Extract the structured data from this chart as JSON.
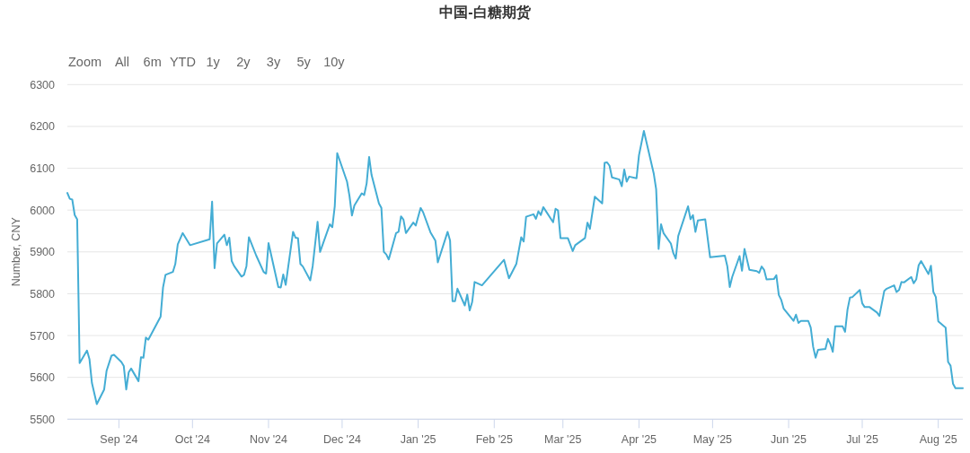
{
  "chart_data": {
    "type": "line",
    "title": "中国-白糖期货",
    "ylabel": "Number, CNY",
    "annotations": [
      "Zoom",
      "All",
      "6m",
      "YTD",
      "1y",
      "2y",
      "3y",
      "5y",
      "10y"
    ],
    "xlim": [
      "2024-08-11",
      "2025-08-11"
    ],
    "xticks": [
      {
        "value": "2024-09-01",
        "label": "Sep '24"
      },
      {
        "value": "2024-10-01",
        "label": "Oct '24"
      },
      {
        "value": "2024-11-01",
        "label": "Nov '24"
      },
      {
        "value": "2024-12-01",
        "label": "Dec '24"
      },
      {
        "value": "2025-01-01",
        "label": "Jan '25"
      },
      {
        "value": "2025-02-01",
        "label": "Feb '25"
      },
      {
        "value": "2025-03-01",
        "label": "Mar '25"
      },
      {
        "value": "2025-04-01",
        "label": "Apr '25"
      },
      {
        "value": "2025-05-01",
        "label": "May '25"
      },
      {
        "value": "2025-06-01",
        "label": "Jun '25"
      },
      {
        "value": "2025-07-01",
        "label": "Jul '25"
      },
      {
        "value": "2025-08-01",
        "label": "Aug '25"
      }
    ],
    "ylim": [
      5500,
      6300
    ],
    "yticks": [
      5500,
      5600,
      5700,
      5800,
      5900,
      6000,
      6100,
      6200,
      6300
    ],
    "grid": "y",
    "line_style": "solid",
    "x": [
      "2024-08-11",
      "2024-08-12",
      "2024-08-13",
      "2024-08-14",
      "2024-08-15",
      "2024-08-16",
      "2024-08-19",
      "2024-08-20",
      "2024-08-21",
      "2024-08-23",
      "2024-08-26",
      "2024-08-27",
      "2024-08-29",
      "2024-08-30",
      "2024-09-02",
      "2024-09-03",
      "2024-09-04",
      "2024-09-05",
      "2024-09-06",
      "2024-09-09",
      "2024-09-10",
      "2024-09-11",
      "2024-09-12",
      "2024-09-13",
      "2024-09-18",
      "2024-09-19",
      "2024-09-20",
      "2024-09-23",
      "2024-09-24",
      "2024-09-25",
      "2024-09-27",
      "2024-09-30",
      "2024-10-08",
      "2024-10-09",
      "2024-10-10",
      "2024-10-11",
      "2024-10-14",
      "2024-10-15",
      "2024-10-16",
      "2024-10-17",
      "2024-10-18",
      "2024-10-21",
      "2024-10-22",
      "2024-10-23",
      "2024-10-24",
      "2024-10-27",
      "2024-10-30",
      "2024-10-31",
      "2024-11-01",
      "2024-11-05",
      "2024-11-06",
      "2024-11-07",
      "2024-11-08",
      "2024-11-11",
      "2024-11-12",
      "2024-11-13",
      "2024-11-14",
      "2024-11-15",
      "2024-11-18",
      "2024-11-19",
      "2024-11-21",
      "2024-11-22",
      "2024-11-26",
      "2024-11-27",
      "2024-11-28",
      "2024-11-29",
      "2024-12-03",
      "2024-12-04",
      "2024-12-05",
      "2024-12-06",
      "2024-12-09",
      "2024-12-10",
      "2024-12-11",
      "2024-12-12",
      "2024-12-13",
      "2024-12-16",
      "2024-12-17",
      "2024-12-18",
      "2024-12-19",
      "2024-12-20",
      "2024-12-23",
      "2024-12-24",
      "2024-12-25",
      "2024-12-26",
      "2024-12-27",
      "2024-12-30",
      "2024-12-31",
      "2025-01-02",
      "2025-01-03",
      "2025-01-06",
      "2025-01-08",
      "2025-01-09",
      "2025-01-13",
      "2025-01-14",
      "2025-01-15",
      "2025-01-16",
      "2025-01-17",
      "2025-01-20",
      "2025-01-21",
      "2025-01-22",
      "2025-01-23",
      "2025-01-24",
      "2025-01-27",
      "2025-02-05",
      "2025-02-07",
      "2025-02-10",
      "2025-02-12",
      "2025-02-13",
      "2025-02-14",
      "2025-02-17",
      "2025-02-18",
      "2025-02-19",
      "2025-02-20",
      "2025-02-21",
      "2025-02-25",
      "2025-02-26",
      "2025-02-27",
      "2025-02-28",
      "2025-03-03",
      "2025-03-05",
      "2025-03-06",
      "2025-03-10",
      "2025-03-11",
      "2025-03-12",
      "2025-03-14",
      "2025-03-17",
      "2025-03-18",
      "2025-03-19",
      "2025-03-20",
      "2025-03-21",
      "2025-03-24",
      "2025-03-25",
      "2025-03-26",
      "2025-03-27",
      "2025-03-28",
      "2025-03-31",
      "2025-04-01",
      "2025-04-03",
      "2025-04-07",
      "2025-04-08",
      "2025-04-09",
      "2025-04-10",
      "2025-04-11",
      "2025-04-14",
      "2025-04-15",
      "2025-04-16",
      "2025-04-17",
      "2025-04-21",
      "2025-04-22",
      "2025-04-23",
      "2025-04-24",
      "2025-04-25",
      "2025-04-28",
      "2025-04-30",
      "2025-05-06",
      "2025-05-07",
      "2025-05-08",
      "2025-05-09",
      "2025-05-12",
      "2025-05-13",
      "2025-05-14",
      "2025-05-16",
      "2025-05-19",
      "2025-05-20",
      "2025-05-21",
      "2025-05-22",
      "2025-05-23",
      "2025-05-26",
      "2025-05-27",
      "2025-05-28",
      "2025-05-29",
      "2025-05-30",
      "2025-06-03",
      "2025-06-04",
      "2025-06-05",
      "2025-06-06",
      "2025-06-09",
      "2025-06-10",
      "2025-06-11",
      "2025-06-12",
      "2025-06-13",
      "2025-06-16",
      "2025-06-17",
      "2025-06-18",
      "2025-06-19",
      "2025-06-20",
      "2025-06-23",
      "2025-06-24",
      "2025-06-25",
      "2025-06-26",
      "2025-06-27",
      "2025-06-30",
      "2025-07-01",
      "2025-07-02",
      "2025-07-04",
      "2025-07-07",
      "2025-07-08",
      "2025-07-10",
      "2025-07-11",
      "2025-07-14",
      "2025-07-15",
      "2025-07-16",
      "2025-07-17",
      "2025-07-18",
      "2025-07-21",
      "2025-07-22",
      "2025-07-23",
      "2025-07-24",
      "2025-07-25",
      "2025-07-28",
      "2025-07-29",
      "2025-07-30",
      "2025-07-31",
      "2025-08-01",
      "2025-08-04",
      "2025-08-05",
      "2025-08-06",
      "2025-08-07",
      "2025-08-08",
      "2025-08-11"
    ],
    "series": [
      {
        "color": "#44add4",
        "values": [
          6041,
          6027,
          6025,
          5988,
          5978,
          5634,
          5664,
          5644,
          5587,
          5536,
          5571,
          5616,
          5652,
          5654,
          5637,
          5627,
          5571,
          5612,
          5621,
          5591,
          5648,
          5647,
          5695,
          5690,
          5745,
          5815,
          5845,
          5852,
          5871,
          5918,
          5945,
          5916,
          5930,
          6020,
          5861,
          5920,
          5941,
          5916,
          5934,
          5878,
          5866,
          5841,
          5845,
          5866,
          5935,
          5891,
          5852,
          5848,
          5921,
          5816,
          5815,
          5846,
          5821,
          5948,
          5934,
          5933,
          5871,
          5865,
          5832,
          5866,
          5972,
          5900,
          5966,
          5959,
          6009,
          6136,
          6068,
          6034,
          5987,
          6011,
          6040,
          6036,
          6064,
          6127,
          6084,
          6016,
          6005,
          5900,
          5894,
          5882,
          5945,
          5948,
          5985,
          5977,
          5945,
          5970,
          5963,
          6005,
          5995,
          5947,
          5927,
          5875,
          5948,
          5927,
          5782,
          5782,
          5812,
          5772,
          5798,
          5760,
          5780,
          5828,
          5820,
          5881,
          5837,
          5871,
          5935,
          5925,
          5984,
          5990,
          5979,
          5997,
          5988,
          6007,
          5971,
          6003,
          5999,
          5933,
          5933,
          5902,
          5916,
          5933,
          5970,
          5955,
          6032,
          6016,
          6113,
          6114,
          6106,
          6078,
          6073,
          6057,
          6097,
          6068,
          6080,
          6076,
          6131,
          6189,
          6088,
          6050,
          5907,
          5966,
          5945,
          5920,
          5897,
          5884,
          5938,
          6009,
          5978,
          5988,
          5948,
          5975,
          5978,
          5887,
          5891,
          5866,
          5816,
          5840,
          5890,
          5855,
          5907,
          5857,
          5854,
          5850,
          5865,
          5857,
          5834,
          5835,
          5844,
          5797,
          5785,
          5764,
          5735,
          5750,
          5730,
          5735,
          5735,
          5719,
          5673,
          5647,
          5666,
          5668,
          5692,
          5680,
          5661,
          5722,
          5722,
          5709,
          5762,
          5791,
          5792,
          5809,
          5777,
          5768,
          5768,
          5755,
          5747,
          5807,
          5812,
          5820,
          5804,
          5809,
          5828,
          5827,
          5840,
          5825,
          5834,
          5868,
          5878,
          5847,
          5867,
          5804,
          5792,
          5734,
          5719,
          5637,
          5628,
          5585,
          5574,
          5574
        ]
      }
    ]
  }
}
